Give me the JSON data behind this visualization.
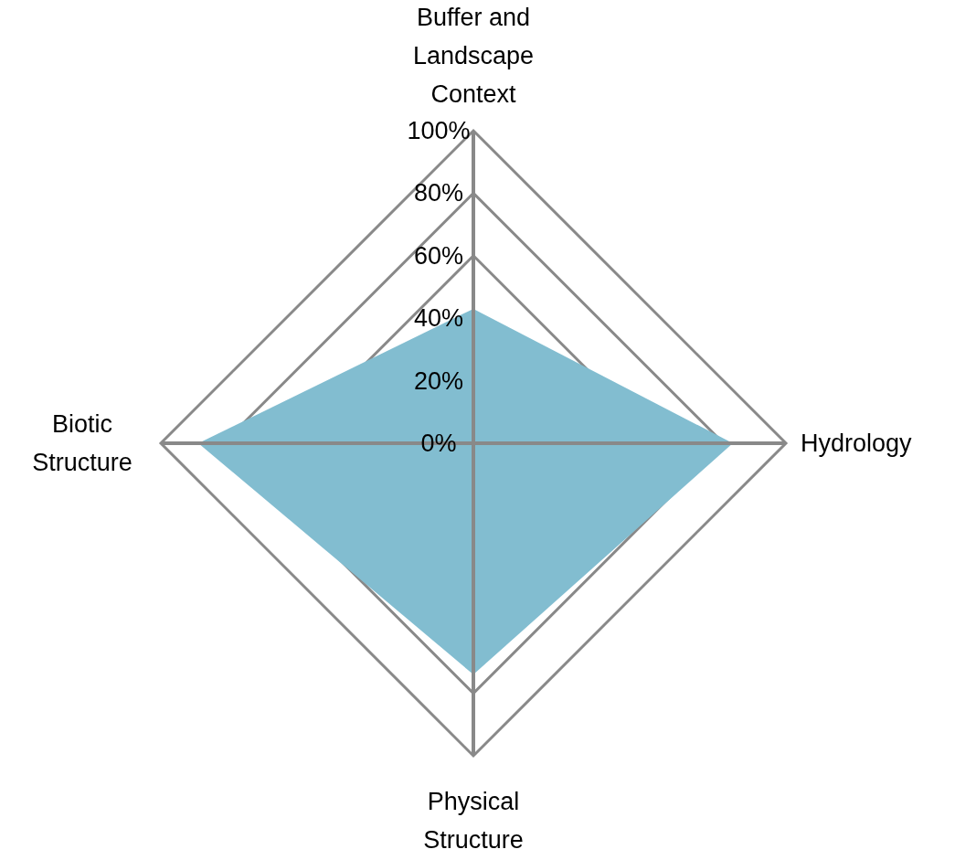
{
  "chart_data": {
    "type": "radar",
    "categories": [
      "Buffer and Landscape Context",
      "Hydrology",
      "Physical Structure",
      "Biotic Structure"
    ],
    "series": [
      {
        "color": "#82bdd0",
        "values": [
          43,
          83,
          74,
          88
        ]
      }
    ],
    "ylim": [
      0,
      100
    ],
    "yticks": [
      {
        "value": 0,
        "label": "0%"
      },
      {
        "value": 20,
        "label": "20%"
      },
      {
        "value": 40,
        "label": "40%"
      },
      {
        "value": 60,
        "label": "60%"
      },
      {
        "value": 80,
        "label": "80%"
      },
      {
        "value": 100,
        "label": "100%"
      }
    ],
    "grid": true
  }
}
